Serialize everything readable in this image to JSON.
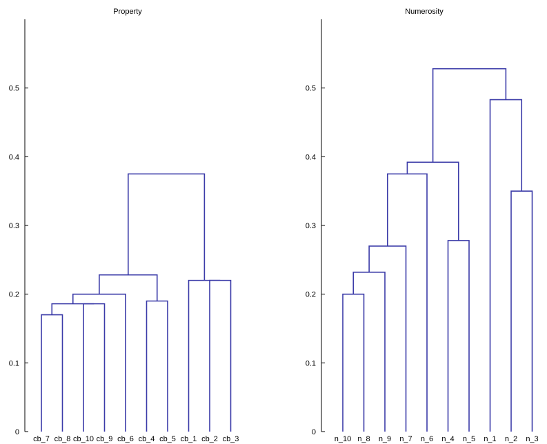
{
  "chart_data": [
    {
      "type": "dendrogram",
      "title": "Property",
      "ylim": [
        0,
        0.6
      ],
      "yticks": [
        "0",
        "0.1",
        "0.2",
        "0.3",
        "0.4",
        "0.5"
      ],
      "leaves": [
        "cb_7",
        "cb_8",
        "cb_10",
        "cb_9",
        "cb_6",
        "cb_4",
        "cb_5",
        "cb_1",
        "cb_2",
        "cb_3"
      ],
      "links": [
        {
          "left": "cb_7",
          "right": "cb_8",
          "height": 0.17
        },
        {
          "left": "cb_10",
          "right": "cb_9",
          "height": 0.186
        },
        {
          "left": "cb_7+cb_8",
          "right": "cb_10+cb_9",
          "height": 0.186
        },
        {
          "left": "cb_7..cb_9",
          "right": "cb_6",
          "height": 0.2
        },
        {
          "left": "cb_4",
          "right": "cb_5",
          "height": 0.19
        },
        {
          "left": "cb_7..cb_6",
          "right": "cb_4+cb_5",
          "height": 0.228
        },
        {
          "left": "cb_2",
          "right": "cb_3",
          "height": 0.22
        },
        {
          "left": "cb_1",
          "right": "cb_2+cb_3",
          "height": 0.22
        },
        {
          "left": "cb_7..cb_5",
          "right": "cb_1..cb_3",
          "height": 0.375
        }
      ]
    },
    {
      "type": "dendrogram",
      "title": "Numerosity",
      "ylim": [
        0,
        0.6
      ],
      "yticks": [
        "0",
        "0.1",
        "0.2",
        "0.3",
        "0.4",
        "0.5"
      ],
      "leaves": [
        "n_10",
        "n_8",
        "n_9",
        "n_7",
        "n_6",
        "n_4",
        "n_5",
        "n_1",
        "n_2",
        "n_3"
      ],
      "links": [
        {
          "left": "n_10",
          "right": "n_8",
          "height": 0.2
        },
        {
          "left": "n_10+n_8",
          "right": "n_9",
          "height": 0.232
        },
        {
          "left": "n_10..n_9",
          "right": "n_7",
          "height": 0.27
        },
        {
          "left": "n_10..n_7",
          "right": "n_6",
          "height": 0.375
        },
        {
          "left": "n_4",
          "right": "n_5",
          "height": 0.278
        },
        {
          "left": "n_10..n_6",
          "right": "n_4+n_5",
          "height": 0.392
        },
        {
          "left": "n_2",
          "right": "n_3",
          "height": 0.35
        },
        {
          "left": "n_1",
          "right": "n_2+n_3",
          "height": 0.483
        },
        {
          "left": "n_10..n_5",
          "right": "n_1..n_3",
          "height": 0.528
        }
      ]
    }
  ]
}
